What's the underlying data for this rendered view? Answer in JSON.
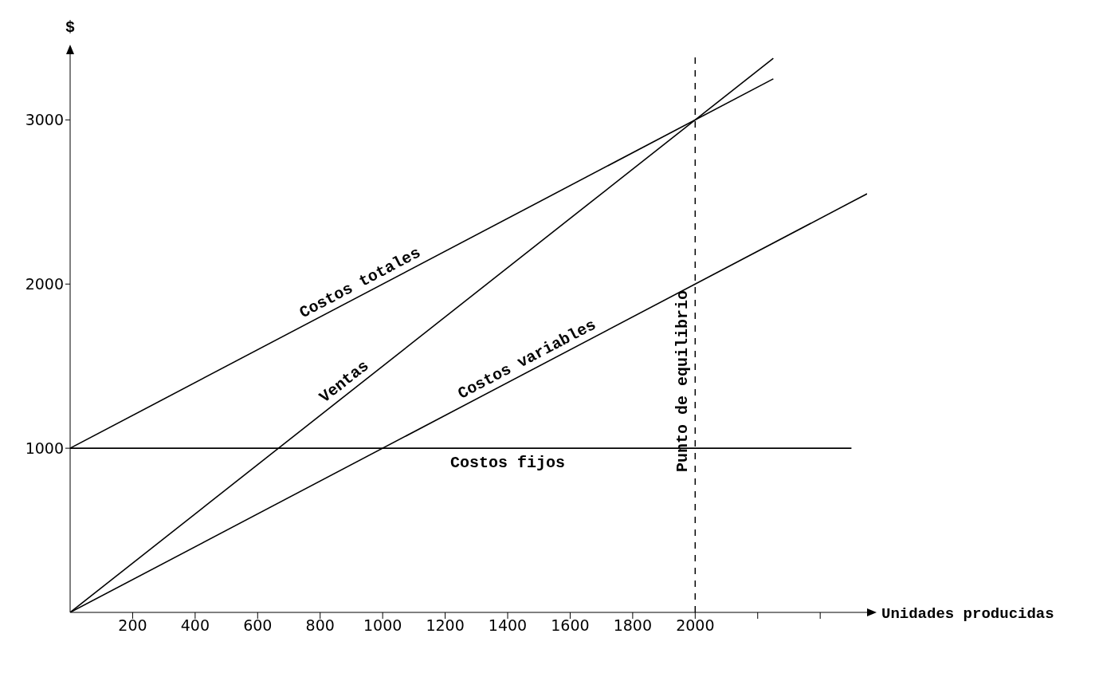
{
  "chart_data": {
    "type": "line",
    "xlabel": "Unidades producidas",
    "ylabel": "$",
    "xlim": [
      0,
      2550
    ],
    "ylim": [
      0,
      3400
    ],
    "xticks": [
      200,
      400,
      600,
      800,
      1000,
      1200,
      1400,
      1600,
      1800,
      2000,
      {
        "value": 2200,
        "label": null
      },
      {
        "value": 2400,
        "label": null
      }
    ],
    "yticks": [
      1000,
      2000,
      3000
    ],
    "grid": false,
    "marker": "none",
    "line_style": "solid",
    "series": [
      {
        "name": "Costos totales",
        "color": "#000000",
        "x": [
          0,
          2250
        ],
        "values": [
          1000,
          3250
        ]
      },
      {
        "name": "Ventas",
        "color": "#000000",
        "x": [
          0,
          2250
        ],
        "values": [
          0,
          3375
        ]
      },
      {
        "name": "Costos variables",
        "color": "#000000",
        "x": [
          0,
          2550
        ],
        "values": [
          0,
          2550
        ]
      },
      {
        "name": "Costos fijos",
        "color": "#000000",
        "x": [
          0,
          2500
        ],
        "values": [
          1000,
          1000
        ]
      }
    ],
    "ref_lines": [
      {
        "axis": "x",
        "value": 2000,
        "label": "Punto de equilibrio",
        "line_style": "dashed",
        "color": "#000000"
      }
    ]
  }
}
